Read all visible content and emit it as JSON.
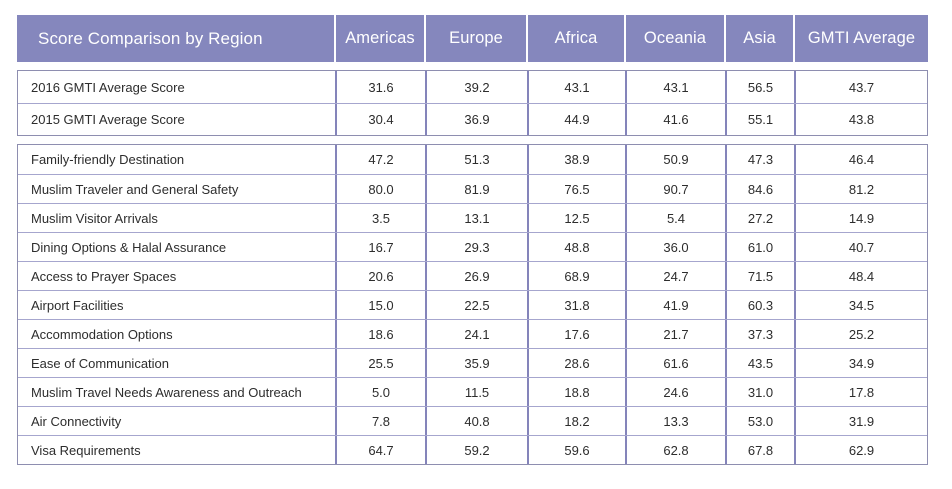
{
  "table": {
    "title": "Score Comparison by Region",
    "columns": [
      "Americas",
      "Europe",
      "Africa",
      "Oceania",
      "Asia",
      "GMTI Average"
    ],
    "sections": [
      {
        "name": "gmti-average-scores",
        "rows": [
          {
            "label": "2016 GMTI Average Score",
            "values": [
              "31.6",
              "39.2",
              "43.1",
              "43.1",
              "56.5",
              "43.7"
            ]
          },
          {
            "label": "2015 GMTI Average Score",
            "values": [
              "30.4",
              "36.9",
              "44.9",
              "41.6",
              "55.1",
              "43.8"
            ]
          }
        ]
      },
      {
        "name": "criteria-scores",
        "rows": [
          {
            "label": "Family-friendly Destination",
            "values": [
              "47.2",
              "51.3",
              "38.9",
              "50.9",
              "47.3",
              "46.4"
            ]
          },
          {
            "label": "Muslim Traveler and General Safety",
            "values": [
              "80.0",
              "81.9",
              "76.5",
              "90.7",
              "84.6",
              "81.2"
            ]
          },
          {
            "label": "Muslim Visitor Arrivals",
            "values": [
              "3.5",
              "13.1",
              "12.5",
              "5.4",
              "27.2",
              "14.9"
            ]
          },
          {
            "label": "Dining Options & Halal Assurance",
            "values": [
              "16.7",
              "29.3",
              "48.8",
              "36.0",
              "61.0",
              "40.7"
            ]
          },
          {
            "label": "Access to Prayer Spaces",
            "values": [
              "20.6",
              "26.9",
              "68.9",
              "24.7",
              "71.5",
              "48.4"
            ]
          },
          {
            "label": "Airport Facilities",
            "values": [
              "15.0",
              "22.5",
              "31.8",
              "41.9",
              "60.3",
              "34.5"
            ]
          },
          {
            "label": "Accommodation Options",
            "values": [
              "18.6",
              "24.1",
              "17.6",
              "21.7",
              "37.3",
              "25.2"
            ]
          },
          {
            "label": "Ease of Communication",
            "values": [
              "25.5",
              "35.9",
              "28.6",
              "61.6",
              "43.5",
              "34.9"
            ]
          },
          {
            "label": "Muslim Travel Needs Awareness and Outreach",
            "values": [
              "5.0",
              "11.5",
              "18.8",
              "24.6",
              "31.0",
              "17.8"
            ]
          },
          {
            "label": "Air Connectivity",
            "values": [
              "7.8",
              "40.8",
              "18.2",
              "13.3",
              "53.0",
              "31.9"
            ]
          },
          {
            "label": "Visa Requirements",
            "values": [
              "64.7",
              "59.2",
              "59.6",
              "62.8",
              "67.8",
              "62.9"
            ]
          }
        ]
      }
    ]
  },
  "colors": {
    "header_bg": "#8587BD",
    "header_text": "#FFFFFF",
    "box_border": "#8E8EB0",
    "column_line": "#8484BA",
    "row_line": "#A6A6CE",
    "cell_text": "#2D2D2D",
    "background": "#FFFFFF"
  },
  "chart_data": {
    "type": "table",
    "title": "Score Comparison by Region",
    "categories": [
      "Americas",
      "Europe",
      "Africa",
      "Oceania",
      "Asia",
      "GMTI Average"
    ],
    "series": [
      {
        "name": "2016 GMTI Average Score",
        "values": [
          31.6,
          39.2,
          43.1,
          43.1,
          56.5,
          43.7
        ]
      },
      {
        "name": "2015 GMTI Average Score",
        "values": [
          30.4,
          36.9,
          44.9,
          41.6,
          55.1,
          43.8
        ]
      },
      {
        "name": "Family-friendly Destination",
        "values": [
          47.2,
          51.3,
          38.9,
          50.9,
          47.3,
          46.4
        ]
      },
      {
        "name": "Muslim Traveler and General Safety",
        "values": [
          80.0,
          81.9,
          76.5,
          90.7,
          84.6,
          81.2
        ]
      },
      {
        "name": "Muslim Visitor Arrivals",
        "values": [
          3.5,
          13.1,
          12.5,
          5.4,
          27.2,
          14.9
        ]
      },
      {
        "name": "Dining Options & Halal Assurance",
        "values": [
          16.7,
          29.3,
          48.8,
          36.0,
          61.0,
          40.7
        ]
      },
      {
        "name": "Access to Prayer Spaces",
        "values": [
          20.6,
          26.9,
          68.9,
          24.7,
          71.5,
          48.4
        ]
      },
      {
        "name": "Airport Facilities",
        "values": [
          15.0,
          22.5,
          31.8,
          41.9,
          60.3,
          34.5
        ]
      },
      {
        "name": "Accommodation Options",
        "values": [
          18.6,
          24.1,
          17.6,
          21.7,
          37.3,
          25.2
        ]
      },
      {
        "name": "Ease of Communication",
        "values": [
          25.5,
          35.9,
          28.6,
          61.6,
          43.5,
          34.9
        ]
      },
      {
        "name": "Muslim Travel Needs Awareness and Outreach",
        "values": [
          5.0,
          11.5,
          18.8,
          24.6,
          31.0,
          17.8
        ]
      },
      {
        "name": "Air Connectivity",
        "values": [
          7.8,
          40.8,
          18.2,
          13.3,
          53.0,
          31.9
        ]
      },
      {
        "name": "Visa Requirements",
        "values": [
          64.7,
          59.2,
          59.6,
          62.8,
          67.8,
          62.9
        ]
      }
    ]
  }
}
